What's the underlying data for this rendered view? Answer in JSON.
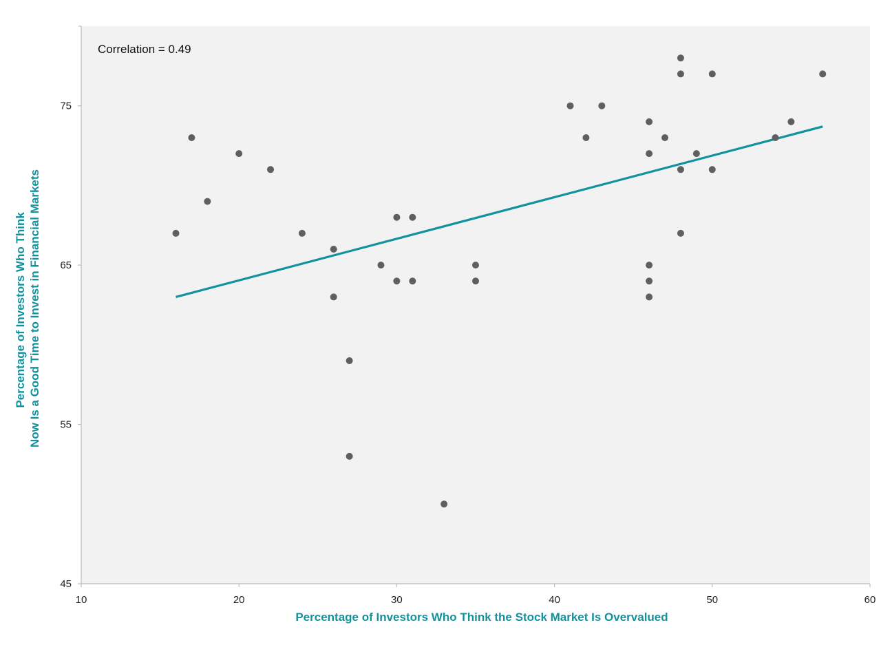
{
  "chart_data": {
    "type": "scatter",
    "annotation": "Correlation = 0.49",
    "xlabel": "Percentage of Investors Who Think the Stock Market Is Overvalued",
    "ylabel": [
      "Percentage of Investors Who Think",
      "Now Is a Good Time to Invest in Financial Markets"
    ],
    "xlim": [
      10,
      60
    ],
    "ylim": [
      45,
      80
    ],
    "x_ticks": [
      "10",
      "20",
      "30",
      "40",
      "50",
      "60"
    ],
    "y_ticks": [
      "45",
      "55",
      "65",
      "75"
    ],
    "grid": false,
    "colors": {
      "plot_background": "#f2f2f2",
      "points": "#5f5f5f",
      "trend_line": "#12929e",
      "axis_title": "#12929e",
      "axis_line": "#bdbdbd"
    },
    "points": [
      {
        "x": 16,
        "y": 67
      },
      {
        "x": 17,
        "y": 73
      },
      {
        "x": 18,
        "y": 69
      },
      {
        "x": 20,
        "y": 72
      },
      {
        "x": 22,
        "y": 71
      },
      {
        "x": 24,
        "y": 67
      },
      {
        "x": 26,
        "y": 66
      },
      {
        "x": 26,
        "y": 63
      },
      {
        "x": 27,
        "y": 59
      },
      {
        "x": 27,
        "y": 53
      },
      {
        "x": 29,
        "y": 65
      },
      {
        "x": 30,
        "y": 68
      },
      {
        "x": 30,
        "y": 64
      },
      {
        "x": 31,
        "y": 68
      },
      {
        "x": 31,
        "y": 64
      },
      {
        "x": 33,
        "y": 50
      },
      {
        "x": 35,
        "y": 65
      },
      {
        "x": 35,
        "y": 64
      },
      {
        "x": 41,
        "y": 75
      },
      {
        "x": 42,
        "y": 73
      },
      {
        "x": 43,
        "y": 75
      },
      {
        "x": 46,
        "y": 74
      },
      {
        "x": 46,
        "y": 72
      },
      {
        "x": 46,
        "y": 65
      },
      {
        "x": 46,
        "y": 64
      },
      {
        "x": 46,
        "y": 63
      },
      {
        "x": 47,
        "y": 73
      },
      {
        "x": 48,
        "y": 78
      },
      {
        "x": 48,
        "y": 77
      },
      {
        "x": 48,
        "y": 71
      },
      {
        "x": 48,
        "y": 67
      },
      {
        "x": 49,
        "y": 72
      },
      {
        "x": 50,
        "y": 77
      },
      {
        "x": 50,
        "y": 71
      },
      {
        "x": 54,
        "y": 73
      },
      {
        "x": 55,
        "y": 74
      },
      {
        "x": 57,
        "y": 77
      }
    ],
    "trend_line": {
      "x": [
        16,
        57
      ],
      "y": [
        63,
        73.7
      ]
    }
  }
}
